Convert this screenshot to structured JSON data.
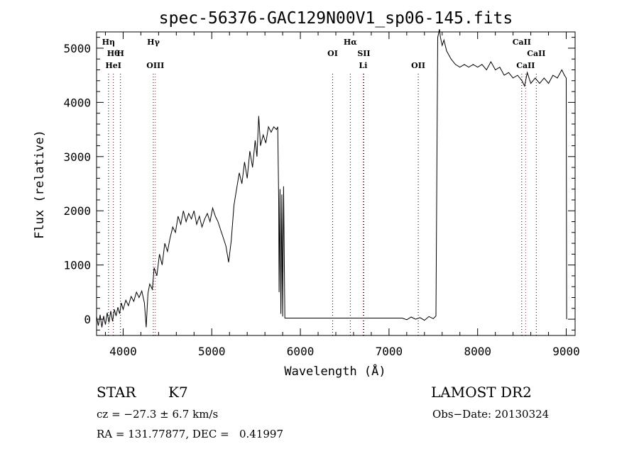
{
  "chart_data": {
    "type": "line",
    "title": "spec-56376-GAC129N00V1_sp06-145.fits",
    "xlabel": "Wavelength (Å)",
    "ylabel": "Flux (relative)",
    "xlim": [
      3700,
      9100
    ],
    "ylim": [
      -300,
      5300
    ],
    "x_ticks": [
      4000,
      5000,
      6000,
      7000,
      8000,
      9000
    ],
    "y_ticks": [
      0,
      1000,
      2000,
      3000,
      4000,
      5000
    ],
    "grid": false,
    "series": [
      {
        "points": [
          [
            3700,
            50
          ],
          [
            3720,
            -120
          ],
          [
            3740,
            80
          ],
          [
            3760,
            -150
          ],
          [
            3780,
            60
          ],
          [
            3800,
            -100
          ],
          [
            3820,
            120
          ],
          [
            3840,
            -60
          ],
          [
            3860,
            150
          ],
          [
            3880,
            -40
          ],
          [
            3900,
            180
          ],
          [
            3920,
            60
          ],
          [
            3940,
            220
          ],
          [
            3960,
            100
          ],
          [
            3980,
            300
          ],
          [
            4000,
            180
          ],
          [
            4030,
            350
          ],
          [
            4060,
            250
          ],
          [
            4090,
            420
          ],
          [
            4120,
            330
          ],
          [
            4150,
            500
          ],
          [
            4180,
            400
          ],
          [
            4210,
            520
          ],
          [
            4240,
            300
          ],
          [
            4260,
            -150
          ],
          [
            4280,
            480
          ],
          [
            4300,
            650
          ],
          [
            4330,
            550
          ],
          [
            4350,
            950
          ],
          [
            4380,
            800
          ],
          [
            4410,
            1200
          ],
          [
            4440,
            1000
          ],
          [
            4470,
            1400
          ],
          [
            4500,
            1250
          ],
          [
            4530,
            1500
          ],
          [
            4560,
            1700
          ],
          [
            4590,
            1600
          ],
          [
            4620,
            1900
          ],
          [
            4650,
            1750
          ],
          [
            4680,
            2000
          ],
          [
            4710,
            1800
          ],
          [
            4740,
            1950
          ],
          [
            4770,
            1850
          ],
          [
            4800,
            2000
          ],
          [
            4830,
            1750
          ],
          [
            4860,
            1900
          ],
          [
            4890,
            1700
          ],
          [
            4920,
            1850
          ],
          [
            4950,
            1950
          ],
          [
            4980,
            1800
          ],
          [
            5010,
            2050
          ],
          [
            5040,
            1900
          ],
          [
            5070,
            1800
          ],
          [
            5100,
            1650
          ],
          [
            5130,
            1500
          ],
          [
            5160,
            1350
          ],
          [
            5190,
            1050
          ],
          [
            5220,
            1450
          ],
          [
            5250,
            2100
          ],
          [
            5280,
            2400
          ],
          [
            5310,
            2700
          ],
          [
            5340,
            2500
          ],
          [
            5370,
            2900
          ],
          [
            5400,
            2600
          ],
          [
            5430,
            3100
          ],
          [
            5460,
            2800
          ],
          [
            5490,
            3300
          ],
          [
            5510,
            3000
          ],
          [
            5530,
            3750
          ],
          [
            5550,
            3200
          ],
          [
            5580,
            3400
          ],
          [
            5610,
            3250
          ],
          [
            5640,
            3550
          ],
          [
            5670,
            3450
          ],
          [
            5700,
            3550
          ],
          [
            5730,
            3500
          ],
          [
            5745,
            3550
          ],
          [
            5755,
            2200
          ],
          [
            5760,
            500
          ],
          [
            5770,
            2400
          ],
          [
            5780,
            100
          ],
          [
            5790,
            2300
          ],
          [
            5800,
            50
          ],
          [
            5810,
            2450
          ],
          [
            5825,
            20
          ],
          [
            6000,
            20
          ],
          [
            6500,
            20
          ],
          [
            7000,
            20
          ],
          [
            7150,
            20
          ],
          [
            7200,
            -10
          ],
          [
            7250,
            40
          ],
          [
            7300,
            0
          ],
          [
            7350,
            30
          ],
          [
            7400,
            -20
          ],
          [
            7450,
            50
          ],
          [
            7500,
            10
          ],
          [
            7530,
            60
          ],
          [
            7550,
            5200
          ],
          [
            7570,
            5350
          ],
          [
            7580,
            5200
          ],
          [
            7600,
            5050
          ],
          [
            7620,
            5150
          ],
          [
            7650,
            4950
          ],
          [
            7700,
            4800
          ],
          [
            7750,
            4700
          ],
          [
            7800,
            4650
          ],
          [
            7850,
            4700
          ],
          [
            7900,
            4650
          ],
          [
            7950,
            4700
          ],
          [
            8000,
            4650
          ],
          [
            8050,
            4700
          ],
          [
            8100,
            4600
          ],
          [
            8150,
            4750
          ],
          [
            8200,
            4600
          ],
          [
            8250,
            4650
          ],
          [
            8300,
            4500
          ],
          [
            8350,
            4550
          ],
          [
            8400,
            4450
          ],
          [
            8450,
            4500
          ],
          [
            8500,
            4400
          ],
          [
            8530,
            4300
          ],
          [
            8560,
            4550
          ],
          [
            8600,
            4350
          ],
          [
            8650,
            4450
          ],
          [
            8700,
            4350
          ],
          [
            8750,
            4450
          ],
          [
            8800,
            4350
          ],
          [
            8850,
            4500
          ],
          [
            8900,
            4450
          ],
          [
            8950,
            4600
          ],
          [
            8980,
            4500
          ],
          [
            9000,
            4450
          ],
          [
            9005,
            0
          ]
        ]
      }
    ],
    "lines": [
      {
        "label": "Hη",
        "x": 3835,
        "color": "#000000",
        "row": 0
      },
      {
        "label": "Hθ",
        "x": 3889,
        "color": "#000000",
        "row": 1
      },
      {
        "label": "HeI",
        "x": 3889,
        "color": "#cc0000",
        "row": 2
      },
      {
        "label": "H",
        "x": 3970,
        "color": "#000000",
        "row": 1
      },
      {
        "label": "Hγ",
        "x": 4341,
        "color": "#000000",
        "row": 0
      },
      {
        "label": "OIII",
        "x": 4363,
        "color": "#cc0000",
        "row": 2
      },
      {
        "label": "OI",
        "x": 6364,
        "color": "#000000",
        "row": 1
      },
      {
        "label": "Hα",
        "x": 6563,
        "color": "#000000",
        "row": 0
      },
      {
        "label": "SII",
        "x": 6716,
        "color": "#000000",
        "row": 1
      },
      {
        "label": "Li",
        "x": 6708,
        "color": "#cc0000",
        "row": 2
      },
      {
        "label": "OII",
        "x": 7330,
        "color": "#000000",
        "row": 2
      },
      {
        "label": "CaII",
        "x": 8498,
        "color": "#000000",
        "row": 0
      },
      {
        "label": "CaII",
        "x": 8542,
        "color": "#cc0000",
        "row": 2
      },
      {
        "label": "CaII",
        "x": 8662,
        "color": "#000000",
        "row": 1
      }
    ]
  },
  "info": {
    "class_label": "STAR",
    "subclass": "K7",
    "survey": "LAMOST DR2",
    "cz": "cz = −27.3 ± 6.7 km/s",
    "obs_date": "Obs−Date: 20130324",
    "coords": "RA = 131.77877, DEC =   0.41997"
  }
}
